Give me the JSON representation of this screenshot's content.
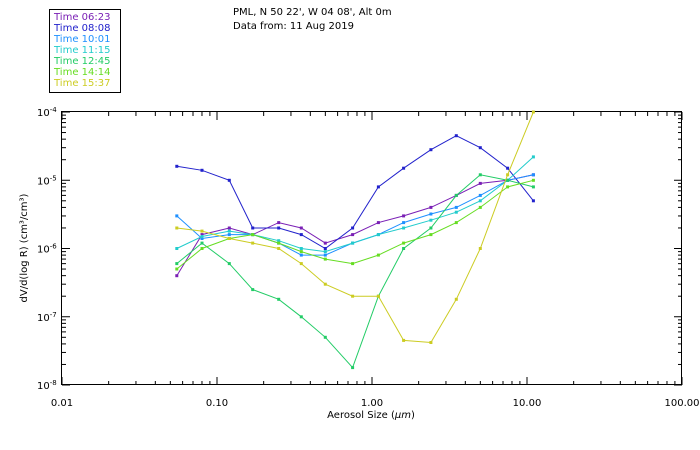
{
  "chart_data": {
    "type": "line",
    "title": "PML, N 50 22', W 04 08', Alt 0m",
    "subtitle": "Data from: 11 Aug 2019",
    "xlabel_prefix": "Aerosol Size (",
    "xlabel_unit": "μm",
    "xlabel_suffix": ")",
    "ylabel": "dV/d(log R) (cm³/cm³)",
    "xscale": "log",
    "yscale": "log",
    "xlim": [
      0.01,
      100
    ],
    "ylim": [
      1e-08,
      0.0001
    ],
    "x_ticks": [
      {
        "value": 0.01,
        "label": "0.01"
      },
      {
        "value": 0.1,
        "label": "0.10"
      },
      {
        "value": 1,
        "label": "1.00"
      },
      {
        "value": 10,
        "label": "10.00"
      },
      {
        "value": 100,
        "label": "100.00"
      }
    ],
    "y_ticks": [
      {
        "value": 1e-08,
        "mantissa": "10",
        "exp": "-8"
      },
      {
        "value": 1e-07,
        "mantissa": "10",
        "exp": "-7"
      },
      {
        "value": 1e-06,
        "mantissa": "10",
        "exp": "-6"
      },
      {
        "value": 1e-05,
        "mantissa": "10",
        "exp": "-5"
      },
      {
        "value": 0.0001,
        "mantissa": "10",
        "exp": "-4"
      }
    ],
    "x": [
      0.055,
      0.08,
      0.12,
      0.17,
      0.25,
      0.35,
      0.5,
      0.75,
      1.1,
      1.6,
      2.4,
      3.5,
      5.0,
      7.5,
      11.0
    ],
    "legend": {
      "position": "top-left",
      "entries": [
        {
          "label": "Time 06:23",
          "color": "#7a1fb5"
        },
        {
          "label": "Time 08:08",
          "color": "#2222cc"
        },
        {
          "label": "Time 10:01",
          "color": "#1e90ff"
        },
        {
          "label": "Time 11:15",
          "color": "#22cccc"
        },
        {
          "label": "Time 12:45",
          "color": "#22cc66"
        },
        {
          "label": "Time 14:14",
          "color": "#66dd22"
        },
        {
          "label": "Time 15:37",
          "color": "#cccc22"
        }
      ]
    },
    "series": [
      {
        "name": "Time 06:23",
        "color": "#7a1fb5",
        "values": [
          4e-07,
          1.6e-06,
          2e-06,
          1.6e-06,
          2.4e-06,
          2e-06,
          1.2e-06,
          1.6e-06,
          2.4e-06,
          3e-06,
          4e-06,
          6e-06,
          9e-06,
          1e-05,
          1.2e-05
        ]
      },
      {
        "name": "Time 08:08",
        "color": "#2222cc",
        "values": [
          1.6e-05,
          1.4e-05,
          1e-05,
          2e-06,
          2e-06,
          1.6e-06,
          1e-06,
          2e-06,
          8e-06,
          1.5e-05,
          2.8e-05,
          4.5e-05,
          3e-05,
          1.5e-05,
          5e-06
        ]
      },
      {
        "name": "Time 10:01",
        "color": "#1e90ff",
        "values": [
          3e-06,
          1.4e-06,
          1.6e-06,
          1.6e-06,
          1.2e-06,
          8e-07,
          8e-07,
          1.2e-06,
          1.6e-06,
          2.4e-06,
          3.2e-06,
          4e-06,
          6e-06,
          1e-05,
          1.2e-05
        ]
      },
      {
        "name": "Time 11:15",
        "color": "#22cccc",
        "values": [
          1e-06,
          1.5e-06,
          1.8e-06,
          1.6e-06,
          1.3e-06,
          1e-06,
          9e-07,
          1.2e-06,
          1.6e-06,
          2e-06,
          2.6e-06,
          3.4e-06,
          5e-06,
          1e-05,
          2.2e-05
        ]
      },
      {
        "name": "Time 12:45",
        "color": "#22cc66",
        "values": [
          6e-07,
          1.2e-06,
          6e-07,
          2.5e-07,
          1.8e-07,
          1e-07,
          5e-08,
          1.8e-08,
          2e-07,
          1e-06,
          2e-06,
          6e-06,
          1.2e-05,
          1e-05,
          8e-06
        ]
      },
      {
        "name": "Time 14:14",
        "color": "#66dd22",
        "values": [
          5e-07,
          1e-06,
          1.4e-06,
          1.6e-06,
          1.2e-06,
          9e-07,
          7e-07,
          6e-07,
          8e-07,
          1.2e-06,
          1.6e-06,
          2.4e-06,
          4e-06,
          8e-06,
          1e-05
        ]
      },
      {
        "name": "Time 15:37",
        "color": "#cccc22",
        "values": [
          2e-06,
          1.8e-06,
          1.4e-06,
          1.2e-06,
          1e-06,
          6e-07,
          3e-07,
          2e-07,
          2e-07,
          4.5e-08,
          4.2e-08,
          1.8e-07,
          1e-06,
          1.2e-05,
          0.0001
        ]
      }
    ]
  }
}
